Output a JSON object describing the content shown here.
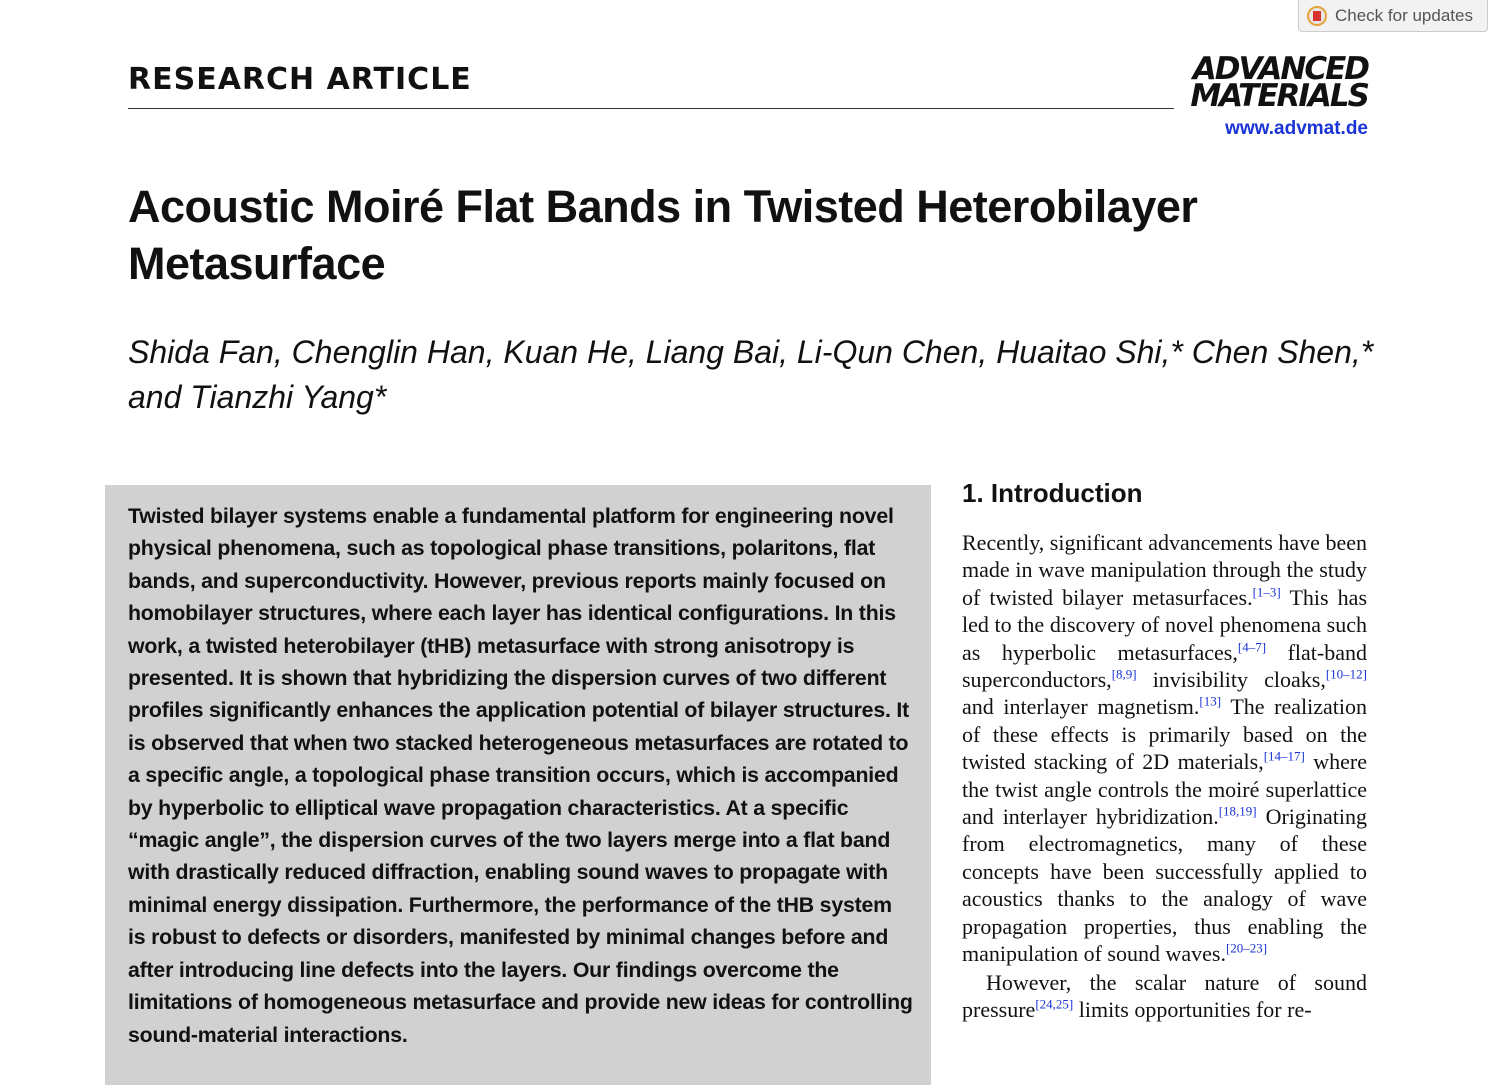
{
  "update_button": "Check for updates",
  "header": {
    "section": "RESEARCH ARTICLE",
    "journal": [
      "ADVANCED",
      "MATERIALS"
    ],
    "url": "www.advmat.de"
  },
  "title": "Acoustic Moiré Flat Bands in Twisted Heterobilayer Metasurface",
  "authors": "Shida Fan, Chenglin Han, Kuan He, Liang Bai, Li-Qun Chen, Huaitao Shi,* Chen Shen,* and Tianzhi Yang*",
  "abstract": "Twisted bilayer systems enable a fundamental platform for engineering novel physical phenomena, such as topological phase transitions, polaritons, flat bands, and superconductivity. However, previous reports mainly focused on homobilayer structures, where each layer has identical configurations. In this work, a twisted heterobilayer (tHB) metasurface with strong anisotropy is presented. It is shown that hybridizing the dispersion curves of two different profiles significantly enhances the application potential of bilayer structures. It is observed that when two stacked heterogeneous metasurfaces are rotated to a specific angle, a topological phase transition occurs, which is accompanied by hyperbolic to elliptical wave propagation characteristics. At a specific “magic angle”, the dispersion curves of the two layers merge into a flat band with drastically reduced diffraction, enabling sound waves to propagate with minimal energy dissipation. Furthermore, the performance of the tHB system is robust to defects or disorders, manifested by minimal changes before and after introducing line defects into the layers. Our findings overcome the limitations of homogeneous metasurface and provide new ideas for controlling sound-material interactions.",
  "introduction": {
    "heading": "1. Introduction",
    "paragraphs": [
      [
        {
          "text": "Recently, significant advancements have been made in wave manipulation through the study of twisted bilayer metasurfaces."
        },
        {
          "cite": "[1–3]"
        },
        {
          "text": " This has led to the discovery of novel phenomena such as hyperbolic metasurfaces,"
        },
        {
          "cite": "[4–7]"
        },
        {
          "text": " flat-band superconductors,"
        },
        {
          "cite": "[8,9]"
        },
        {
          "text": " invisibility cloaks,"
        },
        {
          "cite": "[10–12]"
        },
        {
          "text": " and interlayer magnetism."
        },
        {
          "cite": "[13]"
        },
        {
          "text": " The realization of these effects is primarily based on the twisted stacking of 2D materials,"
        },
        {
          "cite": "[14–17]"
        },
        {
          "text": " where the twist angle controls the moiré superlattice and interlayer hybridization."
        },
        {
          "cite": "[18,19]"
        },
        {
          "text": " Originating from electromagnetics, many of these concepts have been successfully applied to acoustics thanks to the analogy of wave propagation properties, thus enabling the manipulation of sound waves."
        },
        {
          "cite": "[20–23]"
        }
      ],
      [
        {
          "text": "However, the scalar nature of sound pressure"
        },
        {
          "cite": "[24,25]"
        },
        {
          "text": " limits opportunities for re-"
        }
      ]
    ]
  }
}
